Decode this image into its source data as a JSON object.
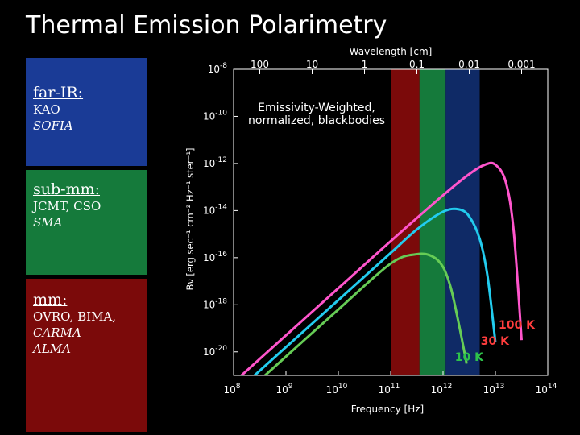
{
  "title": "Thermal Emission Polarimetry",
  "panels": {
    "farir": {
      "heading": "far-IR:",
      "line1": "KAO",
      "line2": "SOFIA",
      "color": "#1a3b96"
    },
    "submm": {
      "heading": "sub-mm:",
      "line1": "JCMT, CSO",
      "line2": "SMA",
      "color": "#157a3b"
    },
    "mm": {
      "heading": "mm:",
      "line1": "OVRO, BIMA,",
      "line2": "CARMA",
      "line3": "ALMA",
      "color": "#7b0a0a"
    }
  },
  "chart_data": {
    "type": "line",
    "x_scale": "log",
    "y_scale": "log",
    "xlabel": "Frequency [Hz]",
    "x2label": "Wavelength [cm]",
    "ylabel": "Bν [erg sec⁻¹ cm⁻² Hz⁻¹ ster⁻¹]",
    "annotation": "Emissivity-Weighted, normalized, blackbodies",
    "xlim_log10": [
      8,
      14
    ],
    "ylim_log10": [
      -21,
      -8
    ],
    "x_ticks": [
      {
        "log10": 8,
        "label": "10",
        "exp": "8"
      },
      {
        "log10": 9,
        "label": "10",
        "exp": "9"
      },
      {
        "log10": 10,
        "label": "10",
        "exp": "10"
      },
      {
        "log10": 11,
        "label": "10",
        "exp": "11"
      },
      {
        "log10": 12,
        "label": "10",
        "exp": "12"
      },
      {
        "log10": 13,
        "label": "10",
        "exp": "13"
      },
      {
        "log10": 14,
        "label": "10",
        "exp": "14"
      }
    ],
    "y_ticks": [
      {
        "log10": -8,
        "label": "10",
        "exp": "-8"
      },
      {
        "log10": -10,
        "label": "10",
        "exp": "-10"
      },
      {
        "log10": -12,
        "label": "10",
        "exp": "-12"
      },
      {
        "log10": -14,
        "label": "10",
        "exp": "-14"
      },
      {
        "log10": -16,
        "label": "10",
        "exp": "-16"
      },
      {
        "log10": -18,
        "label": "10",
        "exp": "-18"
      },
      {
        "log10": -20,
        "label": "10",
        "exp": "-20"
      }
    ],
    "wavelength_ticks": [
      {
        "log10_hz": 8.5,
        "label": "100"
      },
      {
        "log10_hz": 9.5,
        "label": "10"
      },
      {
        "log10_hz": 10.5,
        "label": "1"
      },
      {
        "log10_hz": 11.5,
        "label": "0.1"
      },
      {
        "log10_hz": 12.5,
        "label": "0.01"
      },
      {
        "log10_hz": 13.5,
        "label": "0.001"
      }
    ],
    "bands": [
      {
        "name": "mm",
        "log10_hz_range": [
          11.0,
          11.55
        ],
        "color": "#7b0a0a"
      },
      {
        "name": "sub-mm",
        "log10_hz_range": [
          11.55,
          12.05
        ],
        "color": "#157a3b"
      },
      {
        "name": "far-IR",
        "log10_hz_range": [
          12.05,
          12.7
        ],
        "color": "#0f2a66"
      }
    ],
    "series": [
      {
        "name": "100 K",
        "color": "#ff55cc",
        "label_color": "#ff3d3d",
        "x_log10": [
          8,
          9,
          10,
          11,
          12,
          12.5,
          12.8,
          13.0,
          13.2,
          13.35,
          13.5
        ],
        "y_log10": [
          -21.3,
          -19.3,
          -17.3,
          -15.3,
          -13.35,
          -12.45,
          -12.05,
          -12.05,
          -12.8,
          -14.9,
          -19.5
        ]
      },
      {
        "name": "30 K",
        "color": "#22ccee",
        "label_color": "#ff3d3d",
        "x_log10": [
          8,
          9,
          10,
          11,
          11.5,
          12.0,
          12.3,
          12.5,
          12.7,
          12.85,
          13.0
        ],
        "y_log10": [
          -21.8,
          -19.8,
          -17.8,
          -15.8,
          -14.8,
          -14.05,
          -13.95,
          -14.25,
          -15.2,
          -16.8,
          -19.6
        ]
      },
      {
        "name": "10 K",
        "color": "#66cc55",
        "label_color": "#2ec24a",
        "x_log10": [
          8,
          9,
          10,
          11,
          11.5,
          11.8,
          12.0,
          12.15,
          12.3,
          12.45
        ],
        "y_log10": [
          -22.2,
          -20.2,
          -18.2,
          -16.25,
          -15.85,
          -15.95,
          -16.4,
          -17.3,
          -18.8,
          -20.5
        ]
      }
    ]
  }
}
